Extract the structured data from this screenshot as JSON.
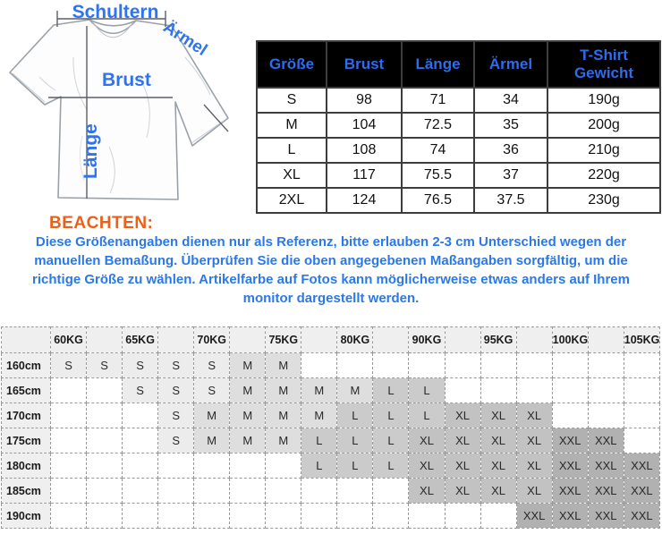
{
  "colors": {
    "accent_blue": "#2e74f0",
    "notice_orange": "#ec5f17",
    "table_header_bg": "#000000",
    "table_header_text": "#2d6cf0",
    "shade_s": "#ececec",
    "shade_m": "#dedede",
    "shade_l": "#cbcbcb",
    "shade_xl": "#c2c2c2",
    "shade_xxl": "#b1b1b1"
  },
  "tee_diagram": {
    "labels": {
      "schultern": "Schultern",
      "aermel": "Ärmel",
      "brust": "Brust",
      "laenge": "Länge"
    }
  },
  "size_table": {
    "headers": [
      "Größe",
      "Brust",
      "Länge",
      "Ärmel",
      "T-Shirt Gewicht"
    ],
    "rows": [
      [
        "S",
        "98",
        "71",
        "34",
        "190g"
      ],
      [
        "M",
        "104",
        "72.5",
        "35",
        "200g"
      ],
      [
        "L",
        "108",
        "74",
        "36",
        "210g"
      ],
      [
        "XL",
        "117",
        "75.5",
        "37",
        "220g"
      ],
      [
        "2XL",
        "124",
        "76.5",
        "37.5",
        "230g"
      ]
    ]
  },
  "notice": {
    "heading": "BEACHTEN:",
    "body": "Diese Größenangaben dienen nur als Referenz, bitte erlauben 2-3 cm Unterschied wegen der manuellen Bemaßung. Überprüfen Sie die oben angegebenen Maßangaben sorgfältig, um die richtige Größe zu wählen. Artikelfarbe auf Fotos kann möglicherweise etwas anders auf Ihrem monitor dargestellt werden."
  },
  "matrix": {
    "weight_headers": [
      "60KG",
      "",
      "65KG",
      "",
      "70KG",
      "",
      "75KG",
      "",
      "80KG",
      "",
      "90KG",
      "",
      "95KG",
      "",
      "100KG",
      "",
      "105KG"
    ],
    "rows": [
      {
        "height": "160cm",
        "cells": [
          "S",
          "S",
          "S",
          "S",
          "S",
          "M",
          "M",
          "",
          "",
          "",
          "",
          "",
          "",
          "",
          "",
          "",
          ""
        ]
      },
      {
        "height": "165cm",
        "cells": [
          "",
          "",
          "S",
          "S",
          "S",
          "M",
          "M",
          "M",
          "M",
          "L",
          "L",
          "",
          "",
          "",
          "",
          "",
          ""
        ]
      },
      {
        "height": "170cm",
        "cells": [
          "",
          "",
          "",
          "S",
          "M",
          "M",
          "M",
          "M",
          "L",
          "L",
          "L",
          "XL",
          "XL",
          "XL",
          "",
          "",
          ""
        ]
      },
      {
        "height": "175cm",
        "cells": [
          "",
          "",
          "",
          "S",
          "M",
          "M",
          "M",
          "L",
          "L",
          "L",
          "XL",
          "XL",
          "XL",
          "XL",
          "XXL",
          "XXL",
          ""
        ]
      },
      {
        "height": "180cm",
        "cells": [
          "",
          "",
          "",
          "",
          "",
          "",
          "",
          "L",
          "L",
          "L",
          "XL",
          "XL",
          "XL",
          "XL",
          "XXL",
          "XXL",
          "XXL"
        ]
      },
      {
        "height": "185cm",
        "cells": [
          "",
          "",
          "",
          "",
          "",
          "",
          "",
          "",
          "",
          "",
          "XL",
          "XL",
          "XL",
          "XL",
          "XXL",
          "XXL",
          "XXL"
        ]
      },
      {
        "height": "190cm",
        "cells": [
          "",
          "",
          "",
          "",
          "",
          "",
          "",
          "",
          "",
          "",
          "",
          "",
          "",
          "XXL",
          "XXL",
          "XXL",
          "XXL"
        ]
      }
    ]
  }
}
